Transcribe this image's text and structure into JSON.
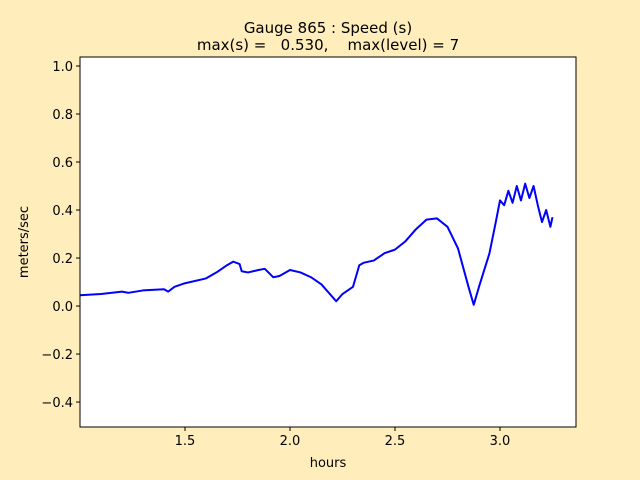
{
  "chart_data": {
    "type": "line",
    "title": "Gauge 865 : Speed (s)",
    "subtitle": "max(s) =   0.530,    max(level) = 7",
    "x_label": "hours",
    "y_label": "meters/sec",
    "x": [
      1.0,
      1.1,
      1.2,
      1.23,
      1.3,
      1.4,
      1.42,
      1.45,
      1.5,
      1.6,
      1.65,
      1.7,
      1.73,
      1.76,
      1.77,
      1.8,
      1.85,
      1.88,
      1.92,
      1.95,
      2.0,
      2.05,
      2.1,
      2.15,
      2.2,
      2.22,
      2.25,
      2.3,
      2.33,
      2.35,
      2.4,
      2.45,
      2.5,
      2.55,
      2.6,
      2.65,
      2.7,
      2.75,
      2.8,
      2.85,
      2.875,
      2.9,
      2.95,
      2.98,
      3.0,
      3.02,
      3.04,
      3.06,
      3.08,
      3.1,
      3.12,
      3.14,
      3.16,
      3.18,
      3.2,
      3.22,
      3.24,
      3.25
    ],
    "series": [
      {
        "name": "speed",
        "color": "#0000ff",
        "values": [
          0.045,
          0.05,
          0.06,
          0.055,
          0.065,
          0.07,
          0.06,
          0.08,
          0.095,
          0.115,
          0.14,
          0.17,
          0.185,
          0.175,
          0.145,
          0.14,
          0.15,
          0.155,
          0.12,
          0.125,
          0.15,
          0.14,
          0.12,
          0.09,
          0.04,
          0.02,
          0.05,
          0.08,
          0.17,
          0.18,
          0.19,
          0.22,
          0.235,
          0.27,
          0.32,
          0.36,
          0.365,
          0.33,
          0.24,
          0.08,
          0.005,
          0.08,
          0.22,
          0.35,
          0.44,
          0.42,
          0.48,
          0.43,
          0.5,
          0.44,
          0.51,
          0.45,
          0.5,
          0.42,
          0.35,
          0.4,
          0.33,
          0.37
        ]
      }
    ],
    "xlim": [
      1.0,
      3.362
    ],
    "ylim": [
      -0.504,
      1.0375
    ],
    "xticks": [
      1.5,
      {
        "value": 2.0,
        "label": "2.0"
      },
      2.5,
      {
        "value": 3.0,
        "label": "3.0"
      }
    ],
    "yticks": [
      {
        "value": -0.4,
        "label": "−0.4"
      },
      {
        "value": -0.2,
        "label": "−0.2"
      },
      {
        "value": 0.0,
        "label": "0.0"
      },
      0.2,
      0.4,
      0.6,
      0.8,
      {
        "value": 1.0,
        "label": "1.0"
      }
    ]
  }
}
